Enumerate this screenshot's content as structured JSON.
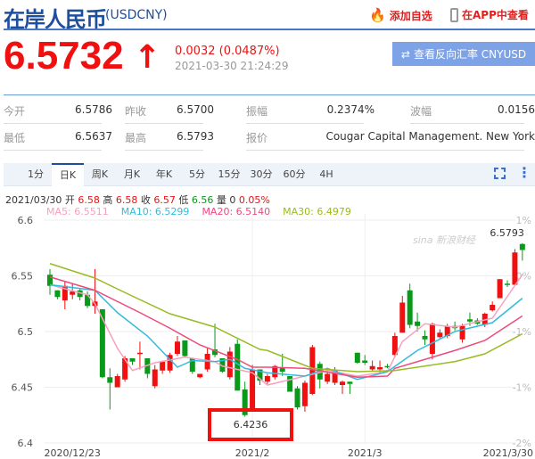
{
  "header": {
    "title": "在岸人民币",
    "code": "(USDCNY)",
    "add_watch": "添加自选",
    "view_app": "在APP中查看"
  },
  "quote": {
    "price": "6.5732",
    "change": "0.0032 (0.0487%)",
    "time": "2021-03-30 21:24:29",
    "reverse_button": "查看反向汇率 CNYUSD",
    "direction": "up"
  },
  "stats": [
    [
      {
        "label": "今开",
        "value": "6.5786"
      },
      {
        "label": "昨收",
        "value": "6.5700"
      },
      {
        "label": "振幅",
        "value": "0.2374%"
      },
      {
        "label": "波幅",
        "value": "0.0156"
      }
    ],
    [
      {
        "label": "最低",
        "value": "6.5637"
      },
      {
        "label": "最高",
        "value": "6.5793"
      },
      {
        "label": "报价",
        "value": "Cougar Capital Management. New York"
      }
    ]
  ],
  "tabs": [
    {
      "label": "1分"
    },
    {
      "label": "日K",
      "active": true
    },
    {
      "label": "周K"
    },
    {
      "label": "月K"
    },
    {
      "label": "年K"
    },
    {
      "label": "5分"
    },
    {
      "label": "15分"
    },
    {
      "label": "30分"
    },
    {
      "label": "60分"
    },
    {
      "label": "4H"
    }
  ],
  "info": {
    "date": "2021/03/30",
    "open_label": "开",
    "open": "6.58",
    "high_label": "高",
    "high": "6.58",
    "close_label": "收",
    "close": "6.57",
    "low_label": "低",
    "low": "6.56",
    "vol_label": "量",
    "vol": "0",
    "pct": "0.05%"
  },
  "ma_legend": [
    {
      "text": "MA5: 6.5511",
      "color": "#f7a1bd"
    },
    {
      "text": "MA10: 6.5299",
      "color": "#33bbdd"
    },
    {
      "text": "MA20: 6.5140",
      "color": "#ee4a7c"
    },
    {
      "text": "MA30: 6.4979",
      "color": "#99bb22"
    }
  ],
  "watermark": "sina 新浪财经",
  "colors": {
    "up": "#f01010",
    "down": "#0a9a1a",
    "accent": "#1d4f9e"
  },
  "chart_data": {
    "type": "candlestick",
    "ylim": [
      6.4,
      6.6
    ],
    "yticks": [
      "6.6",
      "6.55",
      "6.5",
      "6.45",
      "6.4"
    ],
    "yticks_right": [
      "1%",
      "0%",
      "-1%",
      "-1%",
      "-2%"
    ],
    "xticks": [
      {
        "i": 3,
        "label": "2020/12/23"
      },
      {
        "i": 27,
        "label": "2021/2"
      },
      {
        "i": 42,
        "label": "2021/3"
      },
      {
        "i": 63,
        "label": "2021/3/30"
      }
    ],
    "candles": [
      [
        6.551,
        6.541,
        6.556,
        6.533
      ],
      [
        6.537,
        6.531,
        6.537,
        6.529
      ],
      [
        6.528,
        6.541,
        6.545,
        6.52
      ],
      [
        6.533,
        6.536,
        6.543,
        6.529
      ],
      [
        6.537,
        6.531,
        6.539,
        6.528
      ],
      [
        6.533,
        6.523,
        6.536,
        6.521
      ],
      [
        6.523,
        6.527,
        6.556,
        6.516
      ],
      [
        6.52,
        6.459,
        6.52,
        6.458
      ],
      [
        6.459,
        6.454,
        6.467,
        6.43
      ],
      [
        6.45,
        6.46,
        6.462,
        6.45
      ],
      [
        6.457,
        6.476,
        6.478,
        6.455
      ],
      [
        6.476,
        6.473,
        6.476,
        6.47
      ],
      [
        6.48,
        6.481,
        6.491,
        6.466
      ],
      [
        6.476,
        6.462,
        6.476,
        6.458
      ],
      [
        6.451,
        6.466,
        6.47,
        6.449
      ],
      [
        6.465,
        6.473,
        6.474,
        6.462
      ],
      [
        6.465,
        6.479,
        6.481,
        6.463
      ],
      [
        6.48,
        6.491,
        6.496,
        6.478
      ],
      [
        6.492,
        6.478,
        6.492,
        6.477
      ],
      [
        6.476,
        6.464,
        6.476,
        6.462
      ],
      [
        6.459,
        6.462,
        6.462,
        6.458
      ],
      [
        6.466,
        6.48,
        6.485,
        6.464
      ],
      [
        6.484,
        6.479,
        6.507,
        6.477
      ],
      [
        6.476,
        6.464,
        6.476,
        6.463
      ],
      [
        6.459,
        6.482,
        6.486,
        6.457
      ],
      [
        6.489,
        6.447,
        6.493,
        6.447
      ],
      [
        6.448,
        6.425,
        6.455,
        6.4236
      ],
      [
        6.43,
        6.466,
        6.47,
        6.429
      ],
      [
        6.466,
        6.456,
        6.466,
        6.452
      ],
      [
        6.455,
        6.46,
        6.462,
        6.453
      ],
      [
        6.459,
        6.469,
        6.47,
        6.457
      ],
      [
        6.468,
        6.464,
        6.48,
        6.46
      ],
      [
        6.46,
        6.446,
        6.46,
        6.446
      ],
      [
        6.449,
        6.432,
        6.451,
        6.43
      ],
      [
        6.433,
        6.454,
        6.456,
        6.428
      ],
      [
        6.444,
        6.486,
        6.488,
        6.443
      ],
      [
        6.471,
        6.457,
        6.473,
        6.449
      ],
      [
        6.455,
        6.462,
        6.467,
        6.453
      ],
      [
        6.454,
        6.465,
        6.468,
        6.452
      ],
      [
        6.452,
        6.455,
        6.456,
        6.444
      ],
      [
        6.455,
        6.453,
        6.455,
        6.444
      ],
      [
        6.481,
        6.472,
        6.481,
        6.471
      ],
      [
        6.474,
        6.472,
        6.479,
        6.47
      ],
      [
        6.466,
        6.469,
        6.474,
        6.465
      ],
      [
        6.466,
        6.468,
        6.474,
        6.462
      ],
      [
        6.469,
        6.468,
        6.471,
        6.467
      ],
      [
        6.479,
        6.496,
        6.499,
        6.477
      ],
      [
        6.499,
        6.526,
        6.532,
        6.499
      ],
      [
        6.537,
        6.506,
        6.543,
        6.503
      ],
      [
        6.509,
        6.505,
        6.517,
        6.5
      ],
      [
        6.496,
        6.493,
        6.501,
        6.488
      ],
      [
        6.48,
        6.507,
        6.508,
        6.475
      ],
      [
        6.495,
        6.499,
        6.502,
        6.494
      ],
      [
        6.496,
        6.505,
        6.507,
        6.494
      ],
      [
        6.505,
        6.503,
        6.509,
        6.501
      ],
      [
        6.493,
        6.505,
        6.507,
        6.49
      ],
      [
        6.511,
        6.509,
        6.517,
        6.505
      ],
      [
        6.51,
        6.507,
        6.512,
        6.506
      ],
      [
        6.506,
        6.516,
        6.517,
        6.504
      ],
      [
        6.519,
        6.524,
        6.527,
        6.518
      ],
      [
        6.53,
        6.547,
        6.547,
        6.53
      ],
      [
        6.543,
        6.542,
        6.546,
        6.54
      ],
      [
        6.542,
        6.571,
        6.574,
        6.542
      ],
      [
        6.5786,
        6.5732,
        6.5793,
        6.5637
      ]
    ],
    "ma": [
      {
        "name": "MA5",
        "color": "#f7a1bd",
        "points": [
          [
            0,
            6.542
          ],
          [
            5,
            6.533
          ],
          [
            6,
            6.525
          ],
          [
            9,
            6.485
          ],
          [
            11,
            6.465
          ],
          [
            14,
            6.472
          ],
          [
            18,
            6.477
          ],
          [
            22,
            6.473
          ],
          [
            23,
            6.469
          ],
          [
            27,
            6.463
          ],
          [
            29,
            6.452
          ],
          [
            34,
            6.46
          ],
          [
            37,
            6.465
          ],
          [
            41,
            6.46
          ],
          [
            45,
            6.464
          ],
          [
            47,
            6.491
          ],
          [
            50,
            6.507
          ],
          [
            54,
            6.504
          ],
          [
            59,
            6.512
          ],
          [
            63,
            6.5511
          ]
        ]
      },
      {
        "name": "MA10",
        "color": "#33bbdd",
        "points": [
          [
            0,
            6.542
          ],
          [
            6,
            6.537
          ],
          [
            9,
            6.517
          ],
          [
            13,
            6.496
          ],
          [
            17,
            6.468
          ],
          [
            19,
            6.474
          ],
          [
            22,
            6.473
          ],
          [
            24,
            6.475
          ],
          [
            26,
            6.467
          ],
          [
            29,
            6.463
          ],
          [
            34,
            6.46
          ],
          [
            37,
            6.467
          ],
          [
            41,
            6.457
          ],
          [
            45,
            6.464
          ],
          [
            49,
            6.483
          ],
          [
            54,
            6.5
          ],
          [
            59,
            6.508
          ],
          [
            63,
            6.5299
          ]
        ]
      },
      {
        "name": "MA20",
        "color": "#ee4a7c",
        "points": [
          [
            0,
            6.549
          ],
          [
            6,
            6.537
          ],
          [
            12,
            6.517
          ],
          [
            16,
            6.503
          ],
          [
            20,
            6.488
          ],
          [
            25,
            6.475
          ],
          [
            27,
            6.468
          ],
          [
            29,
            6.468
          ],
          [
            34,
            6.467
          ],
          [
            41,
            6.459
          ],
          [
            45,
            6.46
          ],
          [
            46,
            6.467
          ],
          [
            50,
            6.475
          ],
          [
            54,
            6.483
          ],
          [
            58,
            6.492
          ],
          [
            63,
            6.514
          ]
        ]
      },
      {
        "name": "MA30",
        "color": "#99bb22",
        "points": [
          [
            0,
            6.561
          ],
          [
            6,
            6.548
          ],
          [
            10,
            6.535
          ],
          [
            16,
            6.516
          ],
          [
            22,
            6.504
          ],
          [
            28,
            6.484
          ],
          [
            29,
            6.483
          ],
          [
            35,
            6.467
          ],
          [
            41,
            6.464
          ],
          [
            46,
            6.465
          ],
          [
            54,
            6.473
          ],
          [
            58,
            6.48
          ],
          [
            63,
            6.4979
          ]
        ]
      }
    ],
    "annotations": {
      "low": "6.4236",
      "low_index": 26,
      "high": "6.5793",
      "high_index": 63
    }
  }
}
